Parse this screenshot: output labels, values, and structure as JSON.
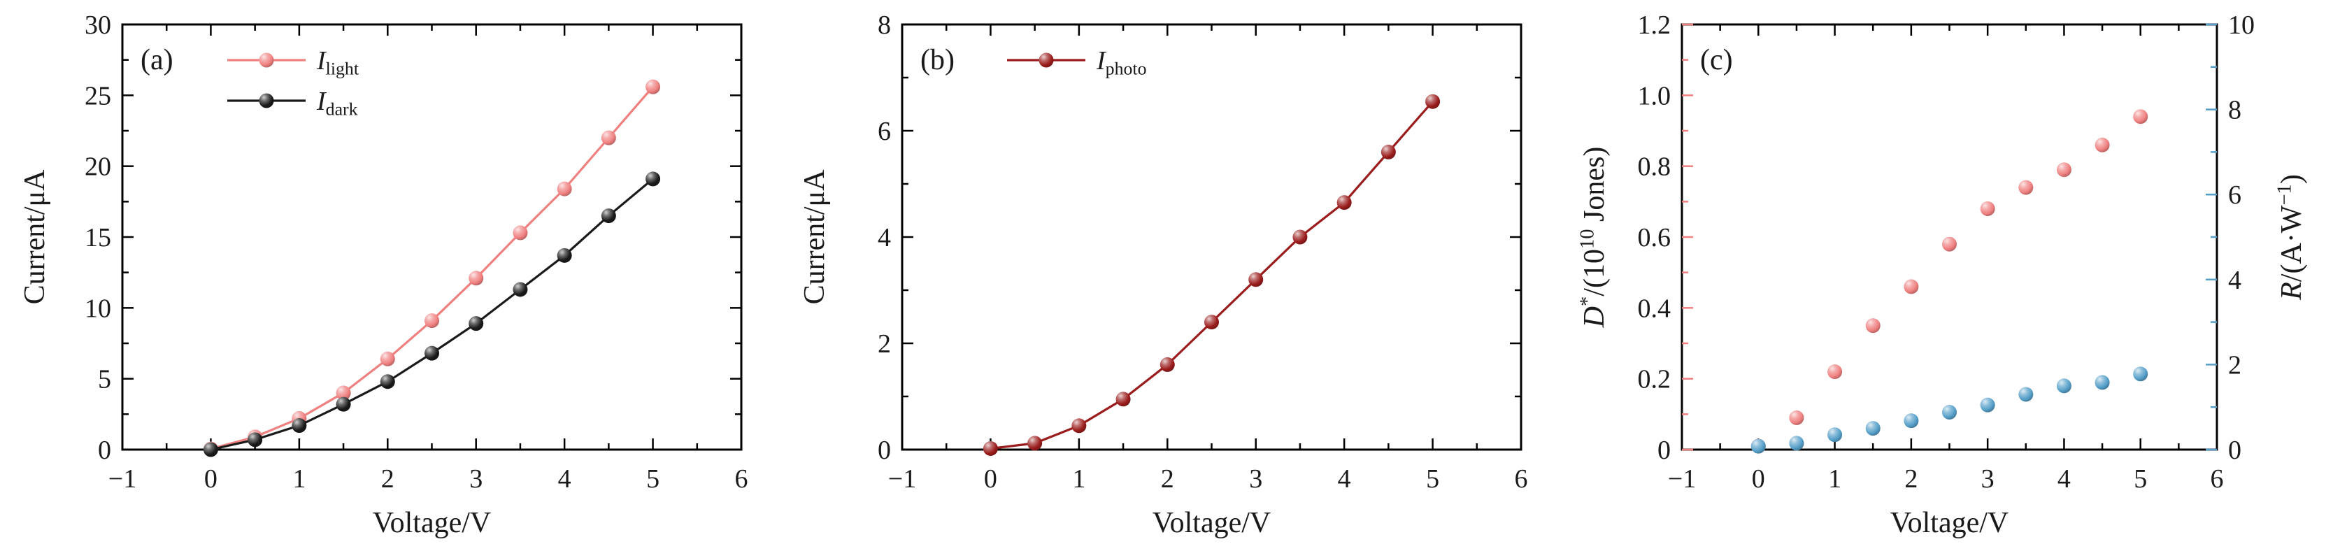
{
  "figure": {
    "background": "#ffffff"
  },
  "chart_data": [
    {
      "id": "a",
      "type": "line",
      "panel_label": "(a)",
      "xlabel": "Voltage/V",
      "ylabel": [
        {
          "text": "Current/μA"
        }
      ],
      "xlim": [
        -1,
        6
      ],
      "ylim": [
        0,
        30
      ],
      "xticks": {
        "values": [
          -1,
          0,
          1,
          2,
          3,
          4,
          5,
          6
        ],
        "labels": [
          "−1",
          "0",
          "1",
          "2",
          "3",
          "4",
          "5",
          "6"
        ]
      },
      "yticks": {
        "values": [
          0,
          5,
          10,
          15,
          20,
          25,
          30
        ],
        "labels": [
          "0",
          "5",
          "10",
          "15",
          "20",
          "25",
          "30"
        ]
      },
      "x": [
        0,
        0.5,
        1,
        1.5,
        2,
        2.5,
        3,
        3.5,
        4,
        4.5,
        5
      ],
      "legend": true,
      "series": [
        {
          "name": "I-light",
          "label": [
            {
              "text": "I",
              "italic": true
            },
            {
              "text": "light",
              "sub": true
            }
          ],
          "color": "#F08080",
          "line": true,
          "values": [
            0.05,
            0.9,
            2.2,
            4.0,
            6.4,
            9.1,
            12.1,
            15.3,
            18.4,
            22.0,
            25.6
          ]
        },
        {
          "name": "I-dark",
          "label": [
            {
              "text": "I",
              "italic": true
            },
            {
              "text": "dark",
              "sub": true
            }
          ],
          "color": "#1A1A1A",
          "line": true,
          "values": [
            0.0,
            0.7,
            1.7,
            3.2,
            4.8,
            6.8,
            8.9,
            11.3,
            13.7,
            16.5,
            19.1
          ]
        }
      ]
    },
    {
      "id": "b",
      "type": "line",
      "panel_label": "(b)",
      "xlabel": "Voltage/V",
      "ylabel": [
        {
          "text": "Current/μA"
        }
      ],
      "xlim": [
        -1,
        6
      ],
      "ylim": [
        0,
        8
      ],
      "xticks": {
        "values": [
          -1,
          0,
          1,
          2,
          3,
          4,
          5,
          6
        ],
        "labels": [
          "−1",
          "0",
          "1",
          "2",
          "3",
          "4",
          "5",
          "6"
        ]
      },
      "yticks": {
        "values": [
          0,
          2,
          4,
          6,
          8
        ],
        "labels": [
          "0",
          "2",
          "4",
          "6",
          "8"
        ]
      },
      "x": [
        0,
        0.5,
        1,
        1.5,
        2,
        2.5,
        3,
        3.5,
        4,
        4.5,
        5
      ],
      "legend": true,
      "series": [
        {
          "name": "I-photo",
          "label": [
            {
              "text": "I",
              "italic": true
            },
            {
              "text": "photo",
              "sub": true
            }
          ],
          "color": "#9B1C1C",
          "line": true,
          "values": [
            0.02,
            0.12,
            0.45,
            0.95,
            1.6,
            2.4,
            3.2,
            4.0,
            4.65,
            5.6,
            6.55
          ]
        }
      ]
    },
    {
      "id": "c",
      "type": "scatter",
      "panel_label": "(c)",
      "xlabel": "Voltage/V",
      "ylabel": [
        {
          "text": "D",
          "italic": true
        },
        {
          "text": "*",
          "sup": true
        },
        {
          "text": "/(10"
        },
        {
          "text": "10",
          "sup": true
        },
        {
          "text": " Jones)"
        }
      ],
      "left_color": "#F08080",
      "xlim": [
        -1,
        6
      ],
      "ylim": [
        0,
        1.2
      ],
      "xticks": {
        "values": [
          -1,
          0,
          1,
          2,
          3,
          4,
          5,
          6
        ],
        "labels": [
          "−1",
          "0",
          "1",
          "2",
          "3",
          "4",
          "5",
          "6"
        ]
      },
      "yticks": {
        "values": [
          0,
          0.2,
          0.4,
          0.6,
          0.8,
          1.0,
          1.2
        ],
        "labels": [
          "0",
          "0.2",
          "0.4",
          "0.6",
          "0.8",
          "1.0",
          "1.2"
        ]
      },
      "x": [
        0,
        0.5,
        1,
        1.5,
        2,
        2.5,
        3,
        3.5,
        4,
        4.5,
        5
      ],
      "legend": false,
      "right_axis": {
        "ylim": [
          0,
          10
        ],
        "ticks": {
          "values": [
            0,
            2,
            4,
            6,
            8,
            10
          ],
          "labels": [
            "0",
            "2",
            "4",
            "6",
            "8",
            "10"
          ]
        },
        "label": [
          {
            "text": "R",
            "italic": true
          },
          {
            "text": "/(A·W"
          },
          {
            "text": "−1",
            "sup": true
          },
          {
            "text": ")"
          }
        ],
        "color": "#559FC9"
      },
      "series": [
        {
          "name": "D-star",
          "label": [],
          "color": "#F08080",
          "line": false,
          "axis": "left",
          "values": [
            0.01,
            0.09,
            0.22,
            0.35,
            0.46,
            0.58,
            0.68,
            0.74,
            0.79,
            0.86,
            0.94
          ]
        },
        {
          "name": "R",
          "label": [],
          "color": "#559FC9",
          "line": false,
          "axis": "right",
          "values": [
            0.08,
            0.15,
            0.35,
            0.5,
            0.68,
            0.88,
            1.05,
            1.3,
            1.5,
            1.58,
            1.78
          ]
        }
      ]
    }
  ]
}
